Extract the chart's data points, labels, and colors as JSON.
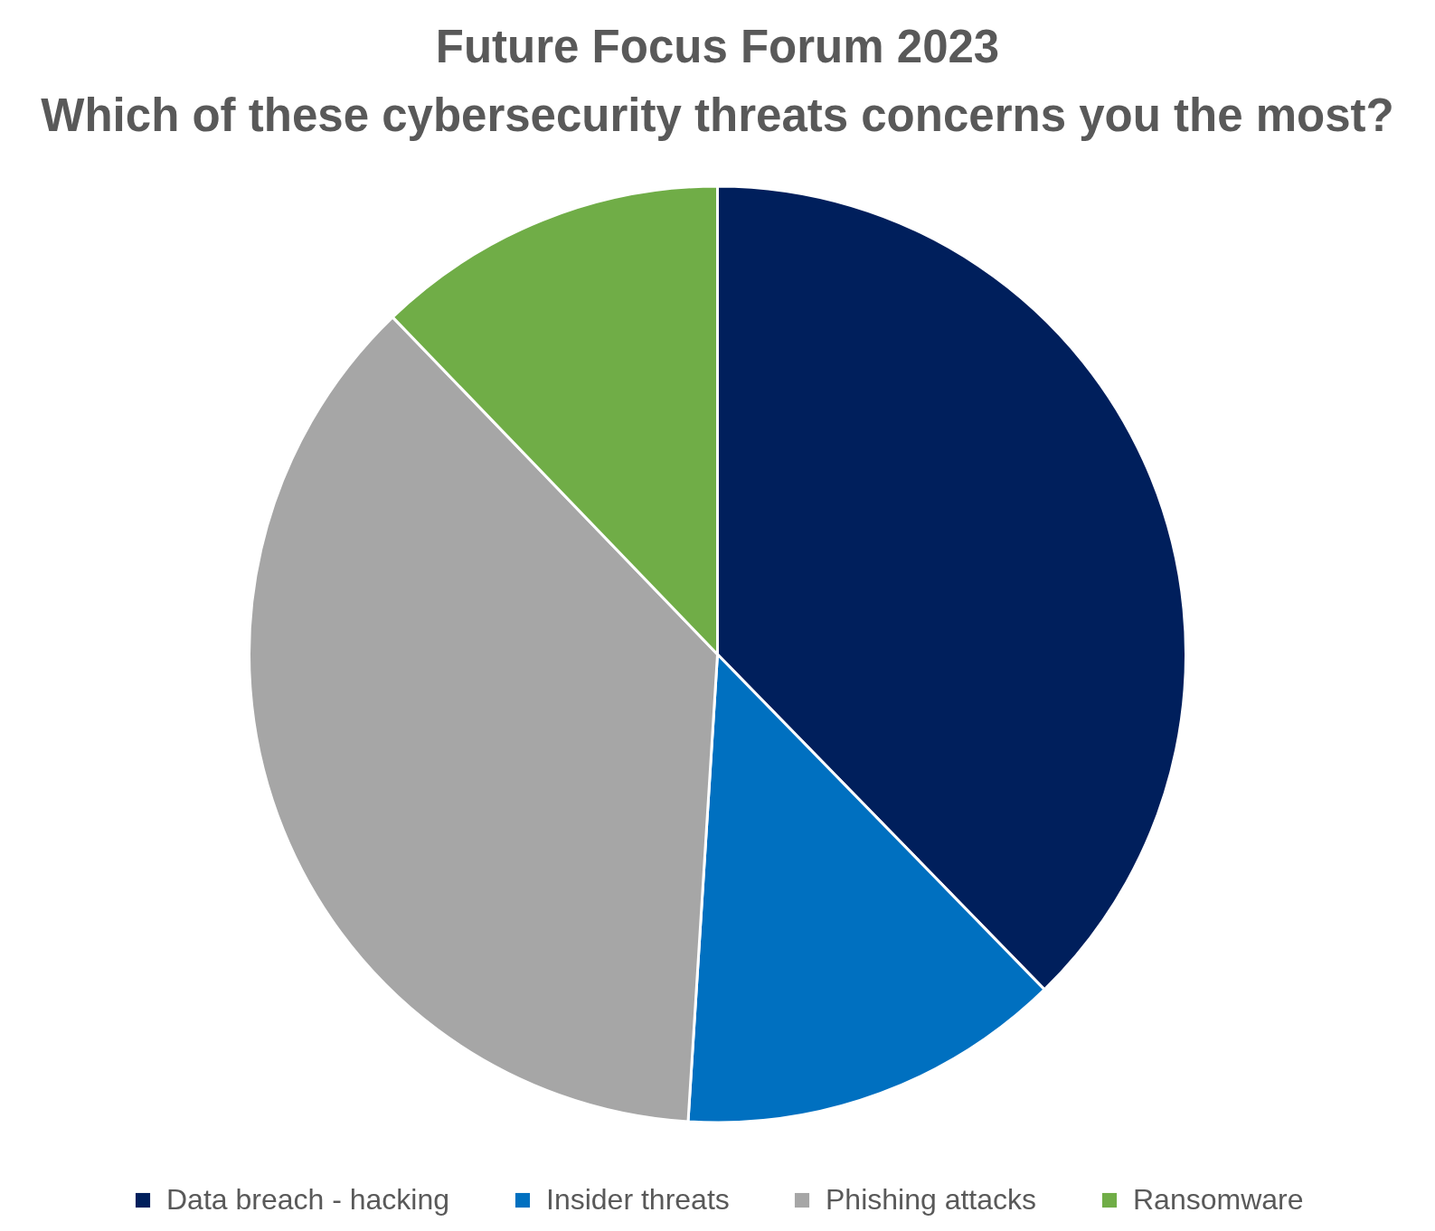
{
  "chart_data": {
    "type": "pie",
    "title": "Future Focus Forum 2023",
    "subtitle": "Which of these cybersecurity threats concerns you the most?",
    "categories": [
      "Data breach - hacking",
      "Insider threats",
      "Phishing attacks",
      "Ransomware"
    ],
    "values": [
      37.7,
      13.3,
      36.8,
      12.2
    ],
    "colors": [
      "#001f5c",
      "#0070c0",
      "#a6a6a6",
      "#70ad47"
    ],
    "legend": "bottom"
  }
}
